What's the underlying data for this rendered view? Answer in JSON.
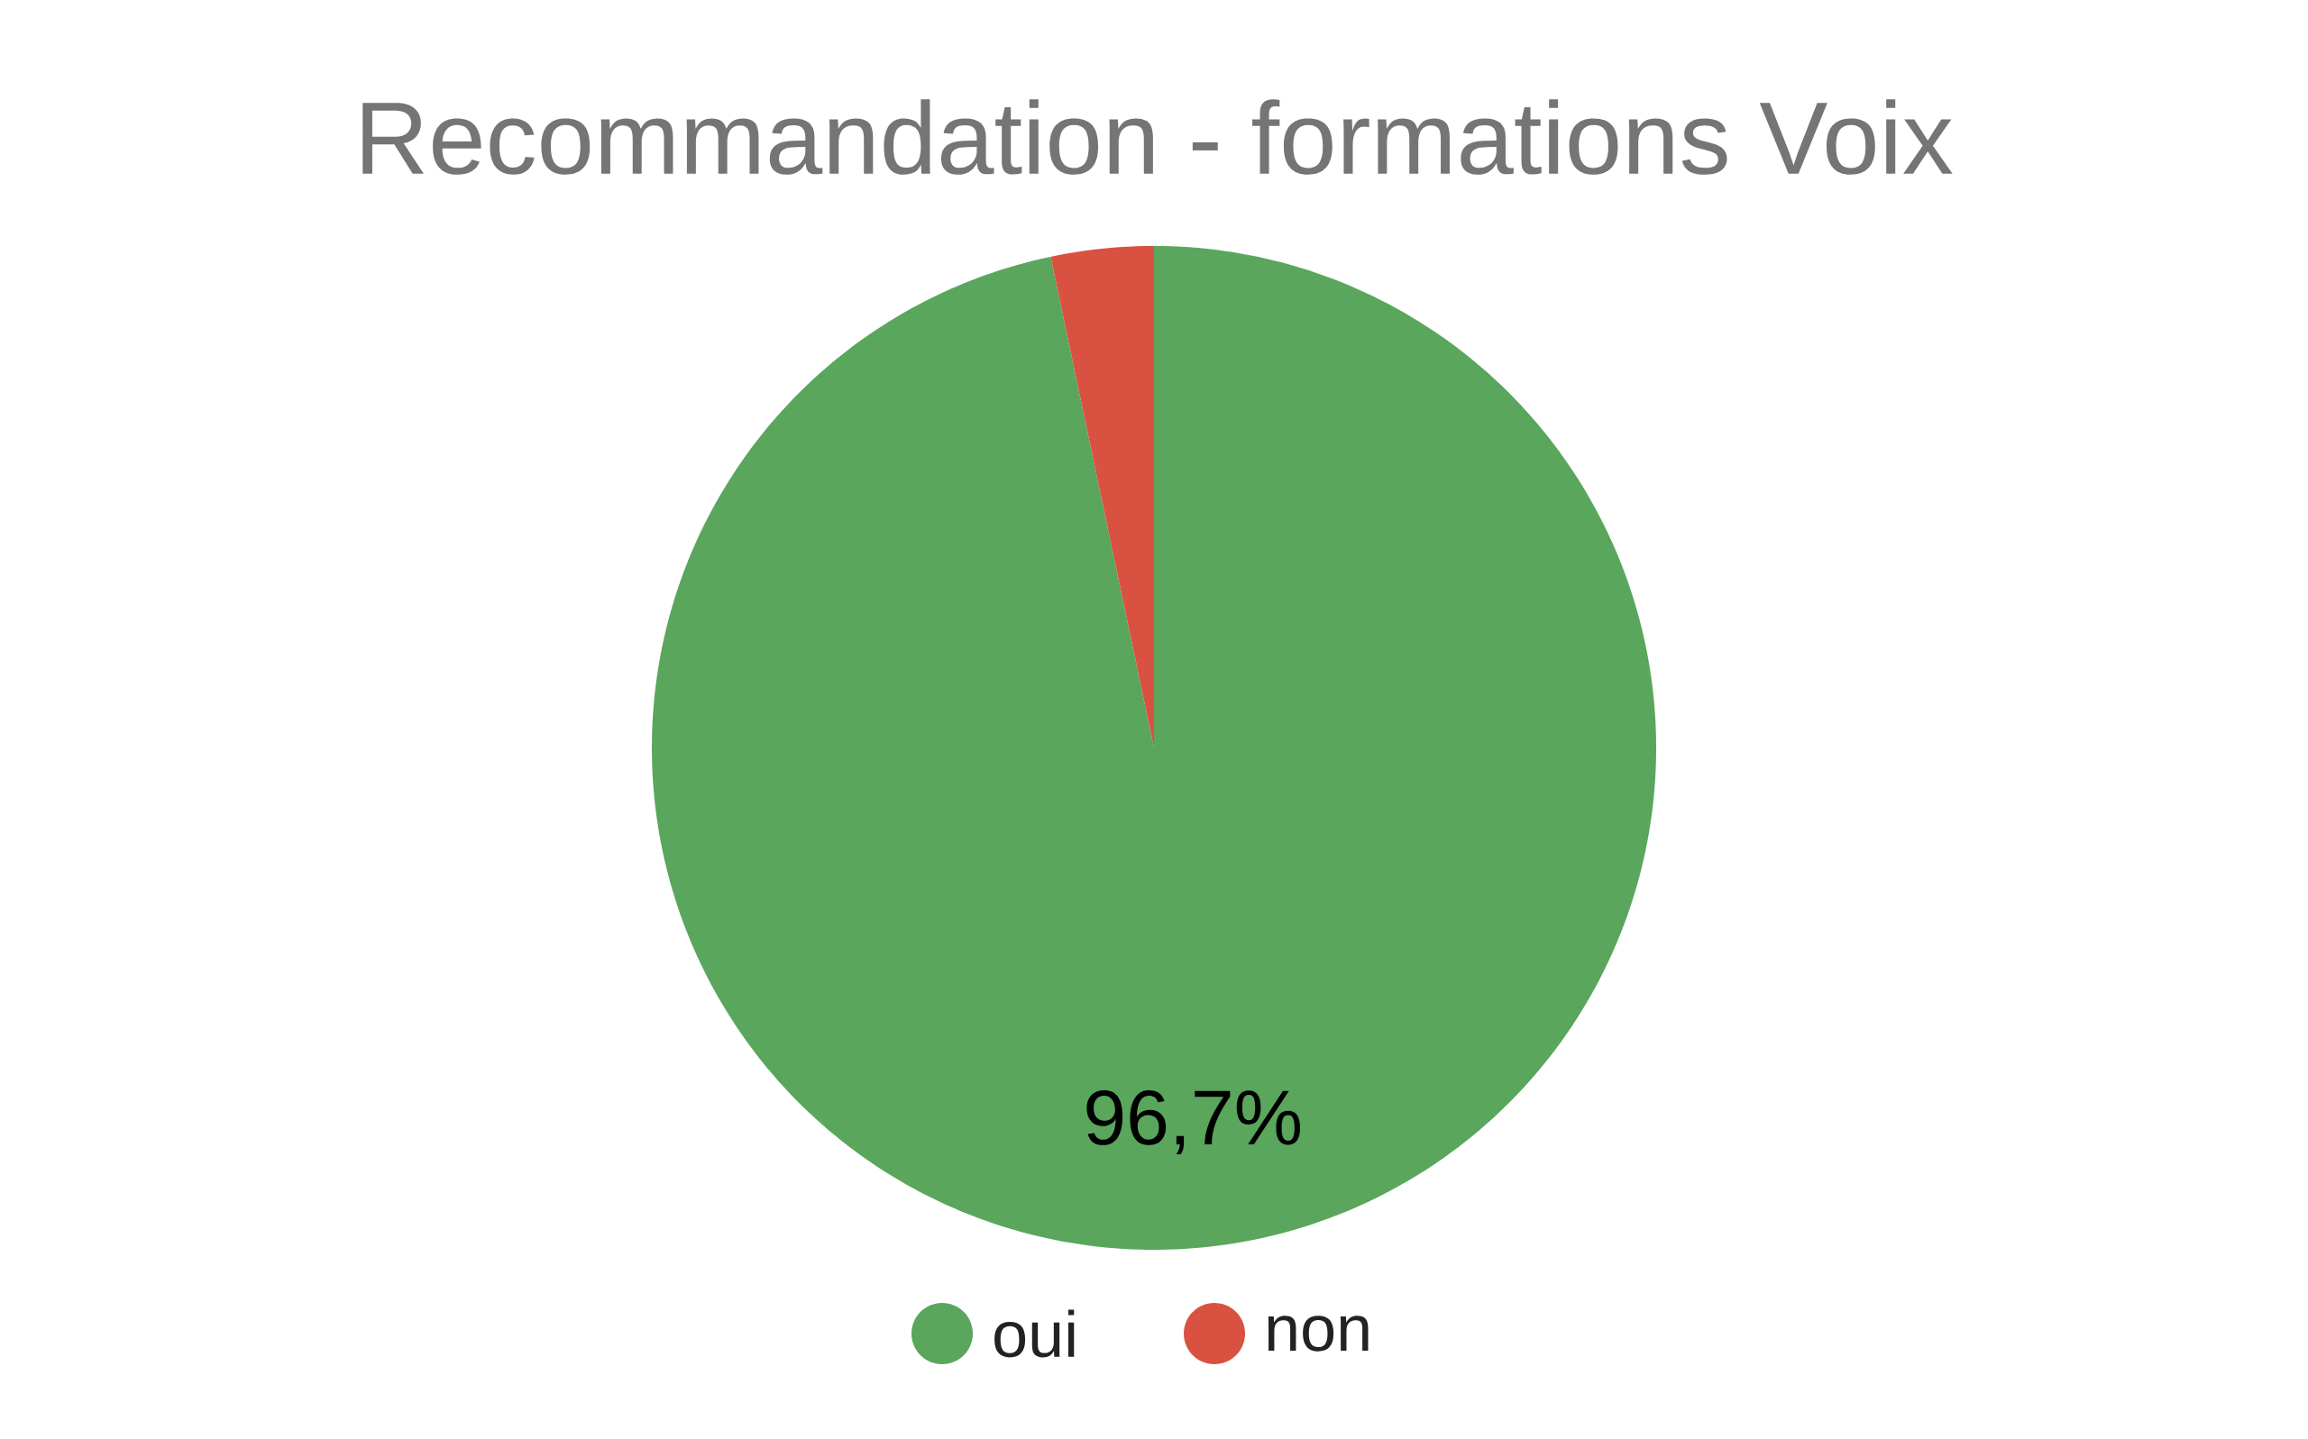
{
  "chart_data": {
    "type": "pie",
    "title": "Recommandation - formations Voix",
    "categories": [
      "oui",
      "non"
    ],
    "values": [
      96.7,
      3.3
    ],
    "colors": [
      "#59a65c",
      "#d95140"
    ],
    "value_labels": [
      "96,7%",
      null
    ],
    "legend": "bottom"
  }
}
